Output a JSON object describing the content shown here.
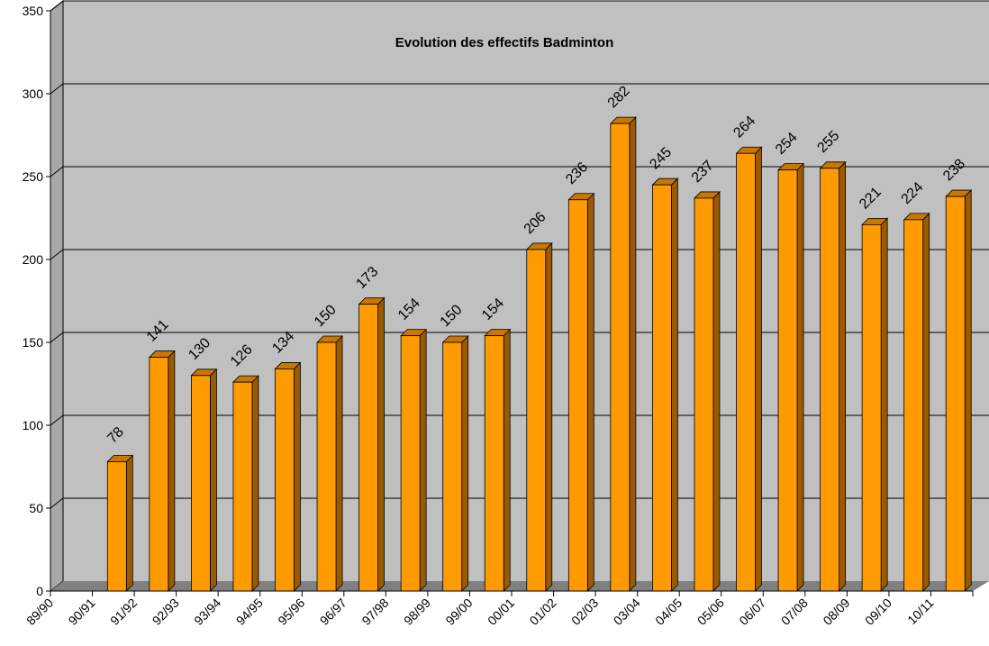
{
  "chart_data": {
    "type": "bar",
    "title": "Evolution des effectifs Badminton",
    "xlabel": "",
    "ylabel": "",
    "ylim": [
      0,
      350
    ],
    "yticks": [
      0,
      50,
      100,
      150,
      200,
      250,
      300,
      350
    ],
    "grid": true,
    "legend": "none",
    "categories": [
      "89/90",
      "90/91",
      "91/92",
      "92/93",
      "93/94",
      "94/95",
      "95/96",
      "96/97",
      "97/98",
      "98/99",
      "99/00",
      "00/01",
      "01/02",
      "02/03",
      "03/04",
      "04/05",
      "05/06",
      "06/07",
      "07/08",
      "08/09",
      "09/10",
      "10/11"
    ],
    "values": [
      null,
      78,
      141,
      130,
      126,
      134,
      150,
      173,
      154,
      150,
      154,
      206,
      236,
      282,
      245,
      237,
      264,
      254,
      255,
      221,
      224,
      238
    ],
    "colors": {
      "bar_front": "#ff9a00",
      "bar_side": "#9a5a00",
      "bar_top": "#c77800",
      "plot_back": "#c0c0c0",
      "plot_side": "#a8a8a8",
      "floor": "#808080",
      "grid": "#000000"
    }
  }
}
